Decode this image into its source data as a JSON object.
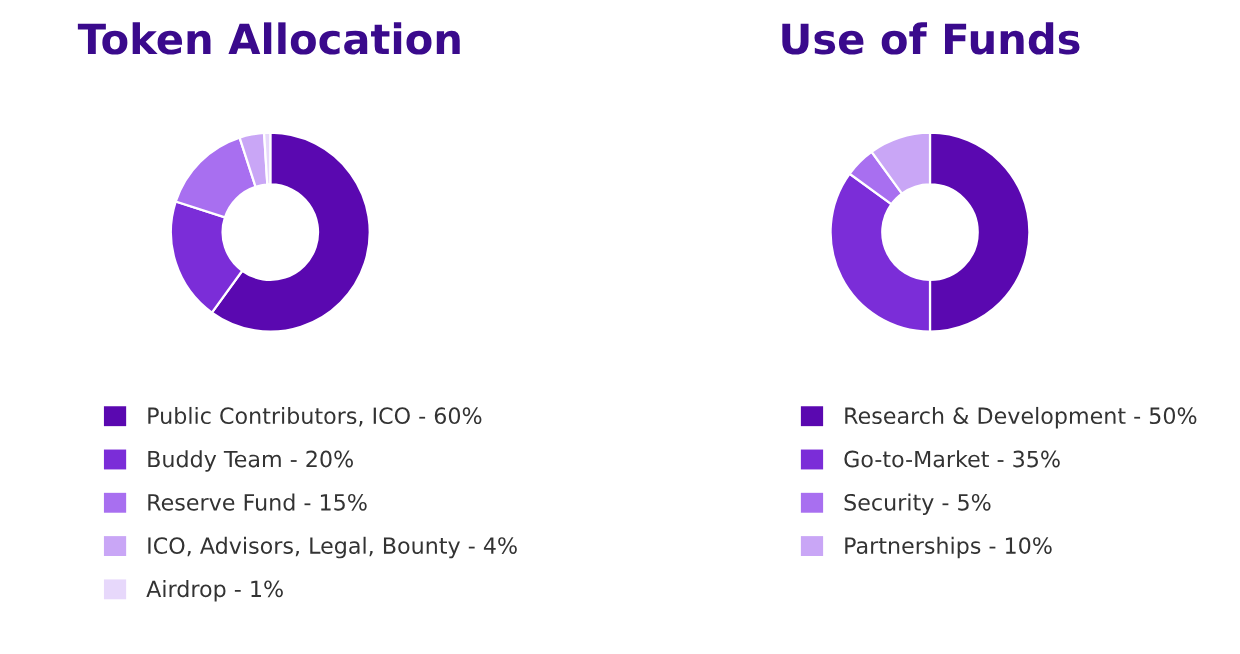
{
  "chart_data": [
    {
      "type": "donut",
      "title": "Token Allocation",
      "categories": [
        "Public Contributors, ICO - 60%",
        "Buddy Team - 20%",
        "Reserve Fund - 15%",
        "ICO, Advisors, Legal, Bounty - 4%",
        "Airdrop - 1%"
      ],
      "values": [
        60,
        20,
        15,
        4,
        1
      ],
      "colors": [
        "#5a08b0",
        "#7b2dd8",
        "#a86ff0",
        "#c9a6f6",
        "#e7d8fb"
      ],
      "legend": "bottom"
    },
    {
      "type": "donut",
      "title": "Use of Funds",
      "categories": [
        "Research & Development - 50%",
        "Go-to-Market - 35%",
        "Security - 5%",
        "Partnerships - 10%"
      ],
      "values": [
        50,
        35,
        5,
        10
      ],
      "colors": [
        "#5a08b0",
        "#7b2dd8",
        "#a86ff0",
        "#c9a6f6"
      ],
      "legend": "bottom"
    }
  ]
}
